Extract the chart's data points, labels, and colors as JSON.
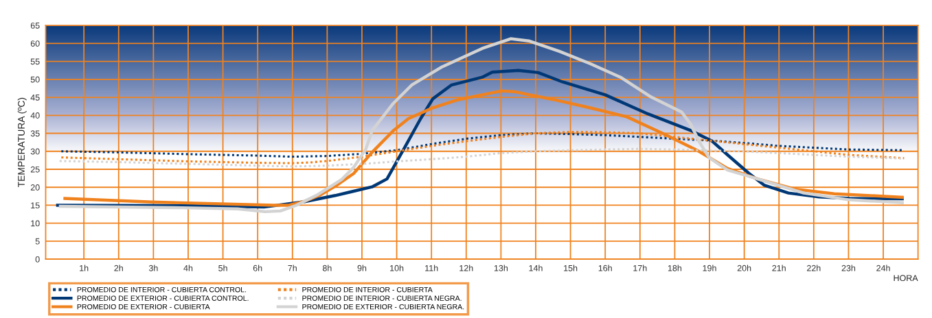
{
  "chart_data": {
    "type": "line",
    "xlabel": "HORA",
    "ylabel": "TEMPERATURA (ºC)",
    "xlim": [
      -0.1,
      25
    ],
    "ylim": [
      0,
      65
    ],
    "xticks": [
      {
        "value": 1,
        "label": "1h"
      },
      {
        "value": 2,
        "label": "2h"
      },
      {
        "value": 3,
        "label": "3h"
      },
      {
        "value": 4,
        "label": "4h"
      },
      {
        "value": 5,
        "label": "5h"
      },
      {
        "value": 6,
        "label": "6h"
      },
      {
        "value": 7,
        "label": "7h"
      },
      {
        "value": 8,
        "label": "8h"
      },
      {
        "value": 9,
        "label": "9h"
      },
      {
        "value": 10,
        "label": "10h"
      },
      {
        "value": 11,
        "label": "11h"
      },
      {
        "value": 12,
        "label": "12h"
      },
      {
        "value": 13,
        "label": "13h"
      },
      {
        "value": 14,
        "label": "14h"
      },
      {
        "value": 15,
        "label": "15h"
      },
      {
        "value": 16,
        "label": "16h"
      },
      {
        "value": 17,
        "label": "17h"
      },
      {
        "value": 18,
        "label": "18h"
      },
      {
        "value": 19,
        "label": "19h"
      },
      {
        "value": 20,
        "label": "20h"
      },
      {
        "value": 21,
        "label": "21h"
      },
      {
        "value": 22,
        "label": "22h"
      },
      {
        "value": 23,
        "label": "23h"
      },
      {
        "value": 24,
        "label": "24h"
      }
    ],
    "yticks": [
      0,
      5,
      10,
      15,
      20,
      25,
      30,
      35,
      40,
      45,
      50,
      55,
      60,
      65
    ],
    "grid": true,
    "legend": "bottom left",
    "marker": "none",
    "series": [
      {
        "name": "PROMEDIO DE INTERIOR - CUBIERTA CONTROL.",
        "color": "#003876",
        "line_style": "dotted",
        "x": [
          0.35,
          2,
          4,
          6,
          7,
          8,
          9,
          10,
          11,
          12,
          13,
          14,
          15,
          16,
          17,
          18,
          19,
          20,
          21,
          22,
          23,
          24.6
        ],
        "values": [
          30,
          29.7,
          29.2,
          28.8,
          28.5,
          28.7,
          29.3,
          30.3,
          32,
          33.5,
          34.5,
          35,
          34.8,
          34.5,
          34,
          33.5,
          33,
          32.3,
          31.5,
          31,
          30.5,
          30.3
        ]
      },
      {
        "name": "PROMEDIO DE EXTERIOR - CUBIERTA CONTROL.",
        "color": "#003876",
        "line_style": "solid",
        "x": [
          0.2,
          3.84,
          6.18,
          7.35,
          8.23,
          9.29,
          9.72,
          10.25,
          10.69,
          11.04,
          11.57,
          12.46,
          12.75,
          13.5,
          14.07,
          14.77,
          16.0,
          17.23,
          18.46,
          19.08,
          19.52,
          20.13,
          20.57,
          21.27,
          22.15,
          23.03,
          24.59
        ],
        "values": [
          15,
          14.9,
          14.5,
          16,
          17.7,
          20.1,
          22.3,
          31.4,
          39.1,
          44.6,
          48.4,
          50.6,
          52,
          52.5,
          51.9,
          49.3,
          45.7,
          40.4,
          35.8,
          32.8,
          29,
          23.9,
          20.6,
          18.4,
          17.3,
          16.9,
          16.8
        ]
      },
      {
        "name": "PROMEDIO DE EXTERIOR - CUBIERTA",
        "color": "#f0821e",
        "line_style": "solid",
        "x": [
          0.41,
          2.96,
          6.48,
          6.9,
          7.35,
          7.79,
          8.25,
          8.76,
          9.29,
          9.9,
          10.34,
          11.04,
          11.75,
          12.46,
          13.02,
          13.37,
          14.51,
          15.56,
          16.62,
          17.67,
          18.64,
          19.52,
          20.39,
          21.45,
          22.59,
          24.59
        ],
        "values": [
          16.9,
          15.9,
          15,
          15,
          16.1,
          17.8,
          20.4,
          23.8,
          29.7,
          35.7,
          39.1,
          42.1,
          44.3,
          45.7,
          46.8,
          46.6,
          44.4,
          42.1,
          39.6,
          34.9,
          30.3,
          25.2,
          22.3,
          19.5,
          18.2,
          17.2
        ]
      },
      {
        "name": "PROMEDIO DE INTERIOR - CUBIERTA",
        "color": "#f0821e",
        "line_style": "dotted",
        "x": [
          0.35,
          2,
          4,
          6,
          7,
          7.5,
          8,
          9,
          10,
          11,
          12,
          13,
          14,
          15,
          16,
          17,
          18,
          19,
          20,
          21,
          22,
          23,
          24.6
        ],
        "values": [
          28.3,
          27.8,
          27.2,
          26.8,
          26.7,
          26.9,
          27.3,
          28.5,
          30,
          31.5,
          32.8,
          34,
          35,
          35.4,
          35.3,
          35,
          34,
          33,
          32,
          31,
          30,
          29,
          28.1
        ]
      },
      {
        "name": "PROMEDIO DE INTERIOR - CUBIERTA NEGRA.",
        "color": "#d3d3d3",
        "line_style": "dotted",
        "x": [
          0.3,
          2,
          4,
          6,
          7,
          8,
          9,
          10,
          11,
          12,
          13,
          14,
          15,
          16,
          17,
          18,
          19,
          20,
          21,
          22,
          23,
          24.6
        ],
        "values": [
          27.3,
          27,
          26.5,
          26,
          25.8,
          26,
          26.5,
          27.2,
          27.8,
          28.5,
          29.5,
          30,
          30.3,
          30.5,
          30.7,
          30.5,
          30.2,
          30,
          29.5,
          29,
          28.5,
          28
        ]
      },
      {
        "name": "PROMEDIO DE EXTERIOR - CUBIERTA NEGRA.",
        "color": "#d3d3d3",
        "line_style": "solid",
        "x": [
          0.28,
          3.84,
          5.42,
          6.21,
          6.65,
          7.09,
          7.7,
          8.41,
          8.76,
          9.11,
          9.29,
          9.9,
          10.43,
          11.31,
          12.46,
          13.28,
          13.8,
          14.68,
          15.56,
          16.44,
          17.32,
          18.2,
          18.46,
          18.72,
          18.99,
          19.52,
          20.39,
          21.71,
          23.03,
          24.59
        ],
        "values": [
          14.7,
          14.3,
          14,
          13.2,
          13.4,
          14.9,
          17.8,
          22.1,
          25.5,
          30.6,
          35.7,
          43.3,
          48.4,
          53.5,
          58.6,
          61.3,
          60.7,
          57.8,
          54.4,
          50.6,
          45.1,
          40.9,
          37.5,
          32.4,
          28.2,
          24.8,
          22.3,
          18.4,
          16.5,
          15.7
        ]
      }
    ]
  }
}
